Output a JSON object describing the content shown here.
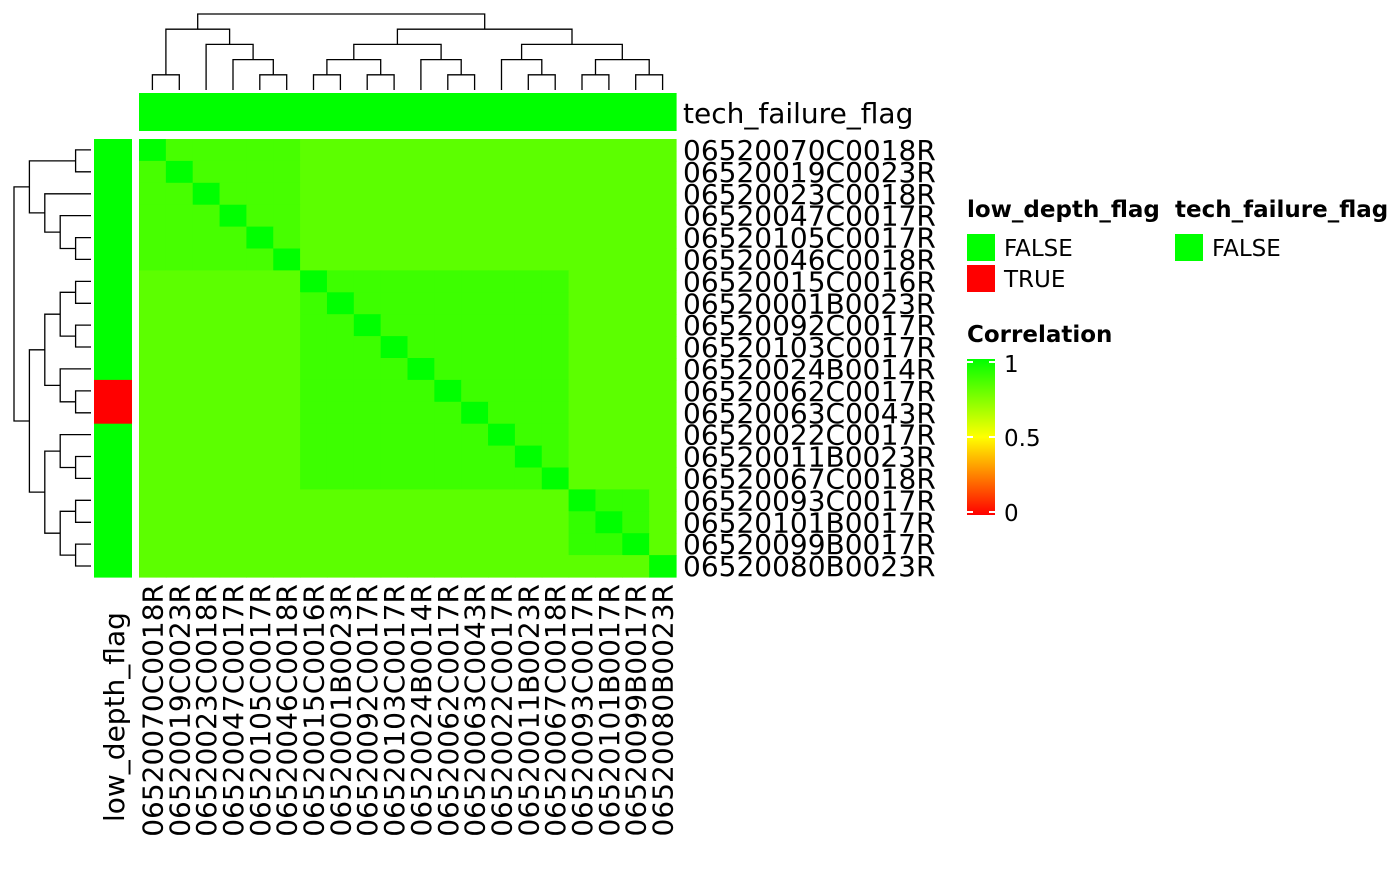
{
  "chart_data": {
    "type": "heatmap",
    "samples": [
      "06520070C0018R",
      "06520019C0023R",
      "06520023C0018R",
      "06520047C0017R",
      "06520105C0017R",
      "06520046C0018R",
      "06520015C0016R",
      "06520001B0023R",
      "06520092C0017R",
      "06520103C0017R",
      "06520024B0014R",
      "06520062C0017R",
      "06520063C0043R",
      "06520022C0017R",
      "06520011B0023R",
      "06520067C0018R",
      "06520093C0017R",
      "06520101B0017R",
      "06520099B0017R",
      "06520080B0023R"
    ],
    "row_labels": [
      "06520070C0018R",
      "06520019C0023R",
      "06520023C0018R",
      "06520047C0017R",
      "06520105C0017R",
      "06520046C0018R",
      "06520015C0016R",
      "06520001B0023R",
      "06520092C0017R",
      "06520103C0017R",
      "06520024B0014R",
      "06520062C0017R",
      "06520063C0043R",
      "06520022C0017R",
      "06520011B0023R",
      "06520067C0018R",
      "06520093C0017R",
      "06520101B0017R",
      "06520099B0017R",
      "06520080B0023R"
    ],
    "col_labels": [
      "06520070C0018R",
      "06520019C0023R",
      "06520023C0018R",
      "06520047C0017R",
      "06520105C0017R",
      "06520046C0018R",
      "06520015C0016R",
      "06520001B0023R",
      "06520092C0017R",
      "06520103C0017R",
      "06520024B0014R",
      "06520062C0017R",
      "06520063C0043R",
      "06520022C0017R",
      "06520011B0023R",
      "06520067C0018R",
      "06520093C0017R",
      "06520101B0017R",
      "06520099B0017R",
      "06520080B0023R"
    ],
    "groups": [
      [
        0,
        1,
        2,
        3,
        4,
        5
      ],
      [
        6,
        7,
        8,
        9,
        10,
        11,
        12,
        13,
        14,
        15
      ],
      [
        16,
        17,
        18
      ],
      [
        19
      ]
    ],
    "within_group_correlation": [
      0.86,
      0.88,
      0.9,
      0.84
    ],
    "between_group_correlation": 0.82,
    "diagonal_correlation": 1,
    "value_range": [
      0,
      1
    ],
    "low_depth_flag": [
      false,
      false,
      false,
      false,
      false,
      false,
      false,
      false,
      false,
      false,
      false,
      true,
      true,
      false,
      false,
      false,
      false,
      false,
      false,
      false
    ],
    "tech_failure_flag": [
      false,
      false,
      false,
      false,
      false,
      false,
      false,
      false,
      false,
      false,
      false,
      false,
      false,
      false,
      false,
      false,
      false,
      false,
      false,
      false
    ],
    "row_annotation_title": "low_depth_flag",
    "col_annotation_title": "tech_failure_flag",
    "colors": {
      "low": "#ff0000",
      "mid": "#ffff00",
      "high": "#00ff00",
      "false": "#00ff00",
      "true": "#ff0000"
    },
    "legends": {
      "low_depth": {
        "title": "low_depth_flag",
        "items": [
          "FALSE",
          "TRUE"
        ]
      },
      "tech_failure": {
        "title": "tech_failure_flag",
        "items": [
          "FALSE"
        ]
      },
      "correlation": {
        "title": "Correlation",
        "ticks": [
          "1",
          "0.5",
          "0"
        ]
      }
    }
  }
}
